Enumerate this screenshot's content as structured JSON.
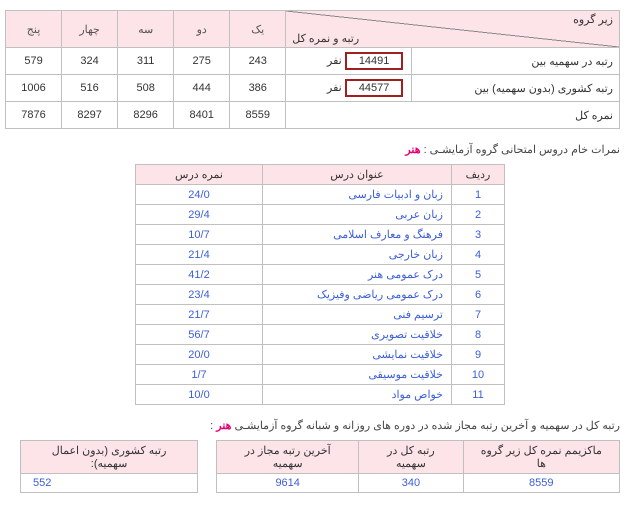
{
  "table1": {
    "diag_top": "زیر گروه",
    "diag_bot": "رتبه و نمره کل",
    "cols": [
      "یک",
      "دو",
      "سه",
      "چهار",
      "پنج"
    ],
    "rows": [
      {
        "label": "رتبه در سهمیه بین",
        "boxed": "14491",
        "unit": "نفر",
        "vals": [
          "243",
          "275",
          "311",
          "324",
          "579"
        ]
      },
      {
        "label": "رتبه کشوری (بدون سهمیه) بین",
        "boxed": "44577",
        "unit": "نفر",
        "vals": [
          "386",
          "444",
          "508",
          "516",
          "1006"
        ]
      },
      {
        "label": "نمره کل",
        "boxed": null,
        "unit": null,
        "vals": [
          "8559",
          "8401",
          "8296",
          "8297",
          "7876"
        ]
      }
    ]
  },
  "sec2_title_a": "نمرات خام دروس امتحانی گروه آزمایشـی : ",
  "sec2_title_b": "هنر",
  "table2": {
    "h_idx": "ردیف",
    "h_name": "عنوان درس",
    "h_score": "نمره درس",
    "rows": [
      {
        "i": "1",
        "n": "زبان و ادبیات فارسی",
        "s": "24/0"
      },
      {
        "i": "2",
        "n": "زبان عربی",
        "s": "29/4"
      },
      {
        "i": "3",
        "n": "فرهنگ و معارف اسلامی",
        "s": "10/7"
      },
      {
        "i": "4",
        "n": "زبان خارجی",
        "s": "21/4"
      },
      {
        "i": "5",
        "n": "درک عمومی هنر",
        "s": "41/2"
      },
      {
        "i": "6",
        "n": "درک عمومی ریاضی وفیزیک",
        "s": "23/4"
      },
      {
        "i": "7",
        "n": "ترسیم فنی",
        "s": "21/7"
      },
      {
        "i": "8",
        "n": "خلاقیت تصویری",
        "s": "56/7"
      },
      {
        "i": "9",
        "n": "خلاقیت نمایشی",
        "s": "20/0"
      },
      {
        "i": "10",
        "n": "خلاقیت موسیقی",
        "s": "1/7"
      },
      {
        "i": "11",
        "n": "خواص مواد",
        "s": "10/0"
      }
    ]
  },
  "sec3_title_a": "رتبه کل در سهمیه و آخرین رتبه مجاز شده در دوره های روزانه و شبانه گروه آزمایشـی ",
  "sec3_title_b": "هنر",
  "sec3_title_c": " :",
  "table3a": {
    "h1": "ماکزیمم نمره کل زیر گروه ها",
    "h2": "رتبه کل در سهمیه",
    "h3": "آخرین رتبه مجاز در سهمیه",
    "v1": "8559",
    "v2": "340",
    "v3": "9614"
  },
  "table3b": {
    "h": "رتبه کشوری (بدون اعمال سهمیه):",
    "v": "552"
  }
}
